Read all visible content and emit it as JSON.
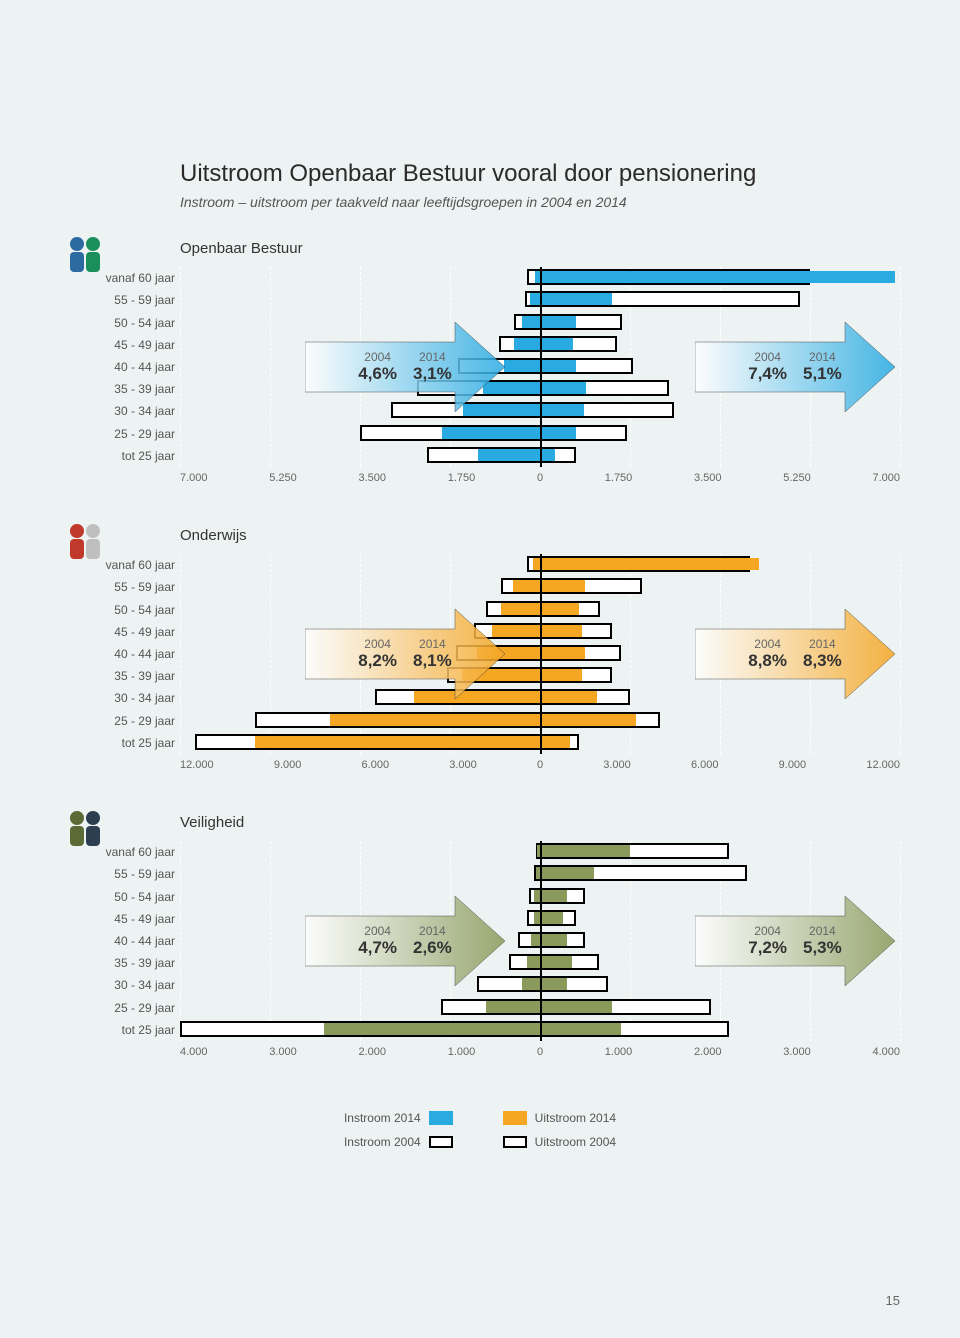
{
  "page_number": "15",
  "header": {
    "title": "Uitstroom Openbaar Bestuur vooral door pensionering",
    "subtitle": "Instroom – uitstroom per taakveld naar leeftijdsgroepen in 2004 en 2014"
  },
  "age_labels": [
    "vanaf 60 jaar",
    "55 - 59 jaar",
    "50 - 54 jaar",
    "45 - 49 jaar",
    "40 - 44 jaar",
    "35 - 39 jaar",
    "30 - 34 jaar",
    "25 - 29 jaar",
    "tot 25 jaar"
  ],
  "sections": [
    {
      "title": "Openbaar Bestuur",
      "fill_color": "#29abe2",
      "arrow_grad_a": "#ffffff",
      "arrow_grad_b": "#29abe2",
      "instroom_label": "2004 / 2014",
      "uitstroom_label": "2004 / 2014",
      "instroom": {
        "y2004": "4,6%",
        "y2014": "3,1%"
      },
      "uitstroom": {
        "y2004": "7,4%",
        "y2014": "5,1%"
      },
      "axis_max": 7000,
      "axis_ticks": [
        "7.000",
        "5.250",
        "3.500",
        "1.750",
        "0",
        "1.750",
        "3.500",
        "5.250",
        "7.000"
      ],
      "rows": [
        {
          "in2004": 250,
          "in2014": 90,
          "out2004": 5250,
          "out2014": 6900
        },
        {
          "in2004": 300,
          "in2014": 200,
          "out2004": 5050,
          "out2014": 1400
        },
        {
          "in2004": 500,
          "in2014": 350,
          "out2004": 1600,
          "out2014": 700
        },
        {
          "in2004": 800,
          "in2014": 500,
          "out2004": 1500,
          "out2014": 650
        },
        {
          "in2004": 1600,
          "in2014": 700,
          "out2004": 1800,
          "out2014": 700
        },
        {
          "in2004": 2400,
          "in2014": 1100,
          "out2004": 2500,
          "out2014": 900
        },
        {
          "in2004": 2900,
          "in2014": 1500,
          "out2004": 2600,
          "out2014": 850
        },
        {
          "in2004": 3500,
          "in2014": 1900,
          "out2004": 1700,
          "out2014": 700
        },
        {
          "in2004": 2200,
          "in2014": 1200,
          "out2004": 700,
          "out2014": 300
        }
      ]
    },
    {
      "title": "Onderwijs",
      "fill_color": "#f5a623",
      "arrow_grad_a": "#ffffff",
      "arrow_grad_b": "#f5a623",
      "instroom": {
        "y2004": "8,2%",
        "y2014": "8,1%"
      },
      "uitstroom": {
        "y2004": "8,8%",
        "y2014": "8,3%"
      },
      "axis_max": 12000,
      "axis_ticks": [
        "12.000",
        "9.000",
        "6.000",
        "3.000",
        "0",
        "3.000",
        "6.000",
        "9.000",
        "12.000"
      ],
      "rows": [
        {
          "in2004": 450,
          "in2014": 250,
          "out2004": 7000,
          "out2014": 7300
        },
        {
          "in2004": 1300,
          "in2014": 900,
          "out2004": 3400,
          "out2014": 1500
        },
        {
          "in2004": 1800,
          "in2014": 1300,
          "out2004": 2000,
          "out2014": 1300
        },
        {
          "in2004": 2200,
          "in2014": 1600,
          "out2004": 2400,
          "out2014": 1400
        },
        {
          "in2004": 2800,
          "in2014": 2100,
          "out2004": 2700,
          "out2014": 1500
        },
        {
          "in2004": 3100,
          "in2014": 2600,
          "out2004": 2400,
          "out2014": 1400
        },
        {
          "in2004": 5500,
          "in2014": 4200,
          "out2004": 3000,
          "out2014": 1900
        },
        {
          "in2004": 9500,
          "in2014": 7000,
          "out2004": 4000,
          "out2014": 3200
        },
        {
          "in2004": 11500,
          "in2014": 9500,
          "out2004": 1300,
          "out2014": 1000
        }
      ]
    },
    {
      "title": "Veiligheid",
      "fill_color": "#8a9a5b",
      "arrow_grad_a": "#ffffff",
      "arrow_grad_b": "#8a9a5b",
      "instroom": {
        "y2004": "4,7%",
        "y2014": "2,6%"
      },
      "uitstroom": {
        "y2004": "7,2%",
        "y2014": "5,3%"
      },
      "axis_max": 4000,
      "axis_ticks": [
        "4.000",
        "3.000",
        "2.000",
        "1.000",
        "0",
        "1.000",
        "2.000",
        "3.000",
        "4.000"
      ],
      "rows": [
        {
          "in2004": 40,
          "in2014": 30,
          "out2004": 2100,
          "out2014": 1000
        },
        {
          "in2004": 70,
          "in2014": 50,
          "out2004": 2300,
          "out2014": 600
        },
        {
          "in2004": 120,
          "in2014": 70,
          "out2004": 500,
          "out2014": 300
        },
        {
          "in2004": 150,
          "in2014": 70,
          "out2004": 400,
          "out2014": 250
        },
        {
          "in2004": 250,
          "in2014": 100,
          "out2004": 500,
          "out2014": 300
        },
        {
          "in2004": 350,
          "in2014": 150,
          "out2004": 650,
          "out2014": 350
        },
        {
          "in2004": 700,
          "in2014": 200,
          "out2004": 750,
          "out2014": 300
        },
        {
          "in2004": 1100,
          "in2014": 600,
          "out2004": 1900,
          "out2014": 800
        },
        {
          "in2004": 4000,
          "in2014": 2400,
          "out2004": 2100,
          "out2014": 900
        }
      ]
    }
  ],
  "legend": {
    "instroom_2014": "Instroom 2014",
    "instroom_2004": "Instroom 2004",
    "uitstroom_2014": "Uitstroom 2014",
    "uitstroom_2004": "Uitstroom 2004"
  },
  "colors": {
    "background": "#edf3f2",
    "outline": "#000000",
    "blue": "#29abe2",
    "orange": "#f5a623",
    "olive": "#8a9a5b"
  }
}
